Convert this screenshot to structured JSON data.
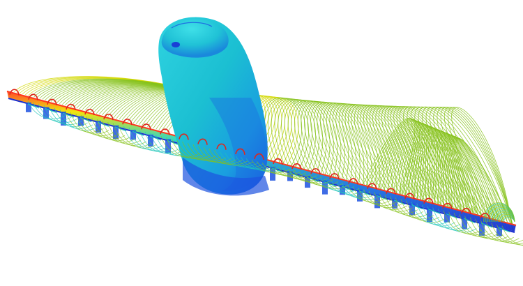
{
  "scene": {
    "background_color": "#ffffff",
    "subject": "cfd-streamline-visualization",
    "colors": {
      "streamline_green": "#86c21a",
      "streamline_yellow": "#d2d800",
      "streamline_cyan": "#1fc6b8",
      "streamline_blue": "#1a3fd6",
      "surface_cyan": "#1fc7d6",
      "surface_blue": "#1d52e0",
      "vortex_red": "#e0261b",
      "wing_edge_red": "#ff3b1f"
    },
    "icons": []
  }
}
